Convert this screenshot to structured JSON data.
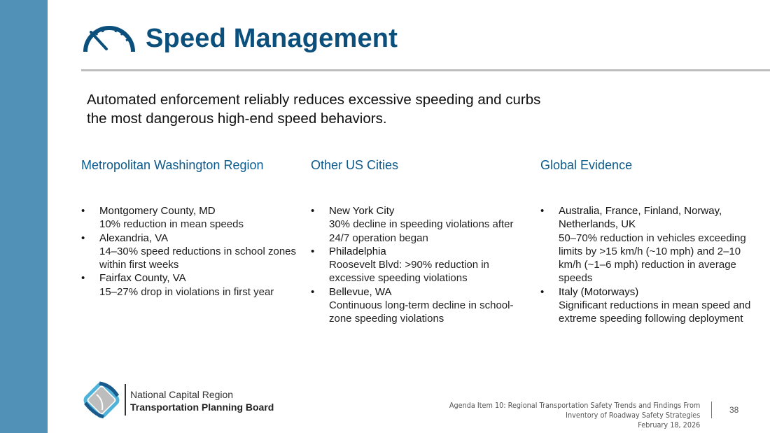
{
  "header": {
    "title": "Speed Management",
    "icon": "speedometer-icon"
  },
  "lead": "Automated enforcement reliably reduces excessive speeding and curbs the most dangerous high-end speed behaviors.",
  "columns": [
    {
      "heading": "Metropolitan Washington Region",
      "items": [
        {
          "name": "Montgomery County, MD",
          "desc": "10% reduction in mean speeds"
        },
        {
          "name": "Alexandria, VA",
          "desc": "14–30% speed reductions in school zones within first weeks"
        },
        {
          "name": "Fairfax County, VA",
          "desc": "15–27% drop in violations in first year"
        }
      ]
    },
    {
      "heading": "Other US Cities",
      "items": [
        {
          "name": "New York City",
          "desc": "30% decline in speeding violations after 24/7 operation began"
        },
        {
          "name": "Philadelphia",
          "desc": "Roosevelt Blvd: >90% reduction in excessive speeding violations"
        },
        {
          "name": "Bellevue, WA",
          "desc": "Continuous long-term decline in school-zone speeding violations"
        }
      ]
    },
    {
      "heading": "Global Evidence",
      "items": [
        {
          "name": "Australia, France, Finland, Norway, Netherlands, UK",
          "desc": "50–70% reduction in vehicles exceeding limits by >15 km/h (~10 mph) and 2–10 km/h (~1–6 mph) reduction in average speeds"
        },
        {
          "name": "Italy (Motorways)",
          "desc": "Significant reductions in mean speed and extreme speeding following deployment"
        }
      ]
    }
  ],
  "footer": {
    "org_line1": "National Capital Region",
    "org_line2": "Transportation Planning Board",
    "agenda_line1": "Agenda Item 10: Regional Transportation  Safety Trends and Findings From",
    "agenda_line2": "Inventory of Roadway Safety Strategies",
    "date": "February 18, 2026",
    "page": "38"
  },
  "colors": {
    "accent": "#0b4f7c",
    "sidebar": "#5191b8",
    "rule": "#bdbdbd"
  }
}
